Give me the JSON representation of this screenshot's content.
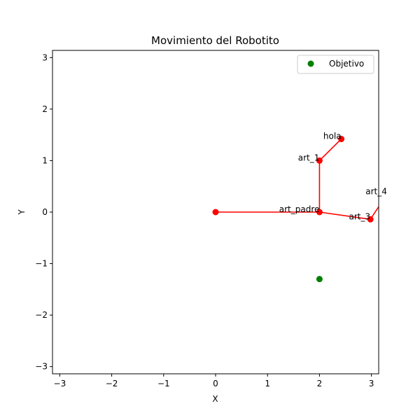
{
  "chart_data": {
    "type": "scatter",
    "title": "Movimiento del Robotito",
    "xlabel": "X",
    "ylabel": "Y",
    "xlim": [
      -3.14,
      3.14
    ],
    "ylim": [
      -3.14,
      3.14
    ],
    "xticks": [
      -3,
      -2,
      -1,
      0,
      1,
      2,
      3
    ],
    "yticks": [
      -3,
      -2,
      -1,
      0,
      1,
      2,
      3
    ],
    "tick_labels_x": [
      "−3",
      "−2",
      "−1",
      "0",
      "1",
      "2",
      "3"
    ],
    "tick_labels_y": [
      "−3",
      "−2",
      "−1",
      "0",
      "1",
      "2",
      "3"
    ],
    "grid": false,
    "legend_position": "upper right",
    "legend": [
      {
        "label": "Objetivo",
        "color": "#008000"
      }
    ],
    "robot_color": "#ff0000",
    "links": [
      {
        "from": [
          0,
          0
        ],
        "to": [
          2,
          0
        ]
      },
      {
        "from": [
          2,
          0
        ],
        "to": [
          2,
          1
        ]
      },
      {
        "from": [
          2,
          1
        ],
        "to": [
          2.42,
          1.42
        ]
      },
      {
        "from": [
          2,
          0
        ],
        "to": [
          2.98,
          -0.14
        ]
      },
      {
        "from": [
          2.98,
          -0.14
        ],
        "to": [
          3.3,
          0.35
        ]
      }
    ],
    "joints": [
      {
        "x": 0,
        "y": 0,
        "label": ""
      },
      {
        "x": 2,
        "y": 0,
        "label": "art_padre"
      },
      {
        "x": 2,
        "y": 1,
        "label": "art_1"
      },
      {
        "x": 2.42,
        "y": 1.42,
        "label": "hola"
      },
      {
        "x": 2.98,
        "y": -0.14,
        "label": "art_3"
      },
      {
        "x": 3.3,
        "y": 0.35,
        "label": "art_4"
      }
    ],
    "target": {
      "x": 2,
      "y": -1.3,
      "color": "#008000"
    }
  }
}
